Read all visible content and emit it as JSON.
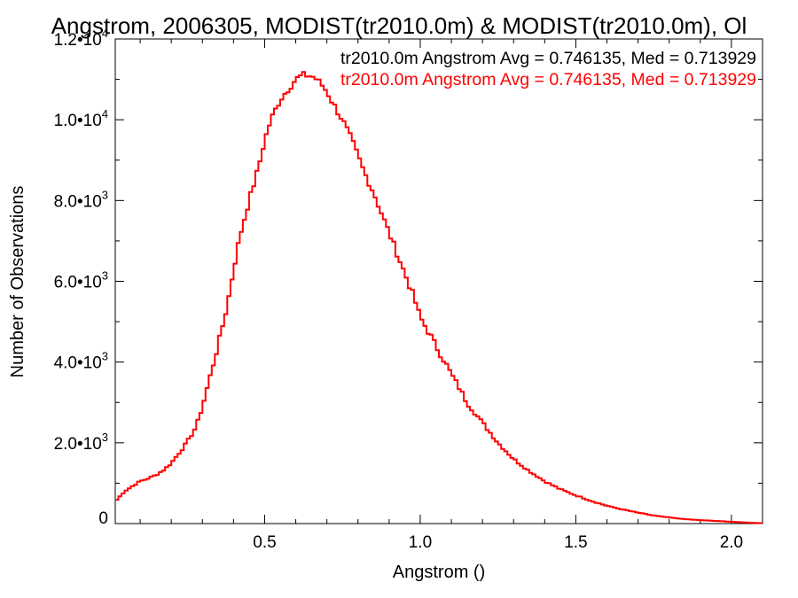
{
  "chart_data": {
    "type": "line",
    "title": "Angstrom, 2006305, MODIST(tr2010.0m) & MODIST(tr2010.0m), Ol",
    "xlabel": "Angstrom ()",
    "ylabel": "Number of Observations",
    "xlim": [
      0.02,
      2.1
    ],
    "ylim": [
      0,
      12000
    ],
    "grid": false,
    "legend_position": "top-right",
    "x_ticks": [
      {
        "value": 0.5,
        "label": "0.5"
      },
      {
        "value": 1.0,
        "label": "1.0"
      },
      {
        "value": 1.5,
        "label": "1.5"
      },
      {
        "value": 2.0,
        "label": "2.0"
      }
    ],
    "y_ticks": [
      {
        "value": 0,
        "mantissa": "0",
        "exp": ""
      },
      {
        "value": 2000,
        "mantissa": "2.0•10",
        "exp": "3"
      },
      {
        "value": 4000,
        "mantissa": "4.0•10",
        "exp": "3"
      },
      {
        "value": 6000,
        "mantissa": "6.0•10",
        "exp": "3"
      },
      {
        "value": 8000,
        "mantissa": "8.0•10",
        "exp": "3"
      },
      {
        "value": 10000,
        "mantissa": "1.0•10",
        "exp": "4"
      },
      {
        "value": 12000,
        "mantissa": "1.2•10",
        "exp": "4"
      }
    ],
    "annotations": [
      {
        "text": "tr2010.0m Angstrom Avg = 0.746135, Med = 0.713929",
        "color": "#000000"
      },
      {
        "text": "tr2010.0m Angstrom Avg = 0.746135, Med = 0.713929",
        "color": "#ff0000"
      }
    ],
    "series": [
      {
        "color": "#ff0000",
        "step": true,
        "x": [
          0.02,
          0.05,
          0.08,
          0.1,
          0.12,
          0.15,
          0.18,
          0.2,
          0.22,
          0.25,
          0.28,
          0.3,
          0.32,
          0.35,
          0.38,
          0.4,
          0.42,
          0.45,
          0.48,
          0.5,
          0.52,
          0.55,
          0.58,
          0.6,
          0.62,
          0.64,
          0.66,
          0.68,
          0.7,
          0.72,
          0.75,
          0.78,
          0.8,
          0.82,
          0.85,
          0.88,
          0.9,
          0.92,
          0.95,
          0.98,
          1.0,
          1.03,
          1.05,
          1.08,
          1.1,
          1.13,
          1.15,
          1.18,
          1.2,
          1.25,
          1.3,
          1.35,
          1.4,
          1.45,
          1.5,
          1.55,
          1.6,
          1.65,
          1.7,
          1.75,
          1.8,
          1.85,
          1.9,
          1.95,
          2.0,
          2.05,
          2.1
        ],
        "y": [
          550,
          800,
          950,
          1050,
          1100,
          1200,
          1350,
          1500,
          1700,
          2000,
          2400,
          2900,
          3500,
          4400,
          5400,
          6300,
          7100,
          8000,
          8800,
          9500,
          10000,
          10500,
          10800,
          11000,
          11100,
          11100,
          11050,
          10900,
          10700,
          10400,
          10000,
          9500,
          9100,
          8700,
          8200,
          7600,
          7200,
          6800,
          6200,
          5600,
          5100,
          4700,
          4400,
          4000,
          3700,
          3300,
          3000,
          2700,
          2500,
          2000,
          1600,
          1300,
          1050,
          850,
          700,
          560,
          440,
          350,
          270,
          200,
          150,
          110,
          85,
          65,
          45,
          25,
          10
        ]
      }
    ]
  }
}
